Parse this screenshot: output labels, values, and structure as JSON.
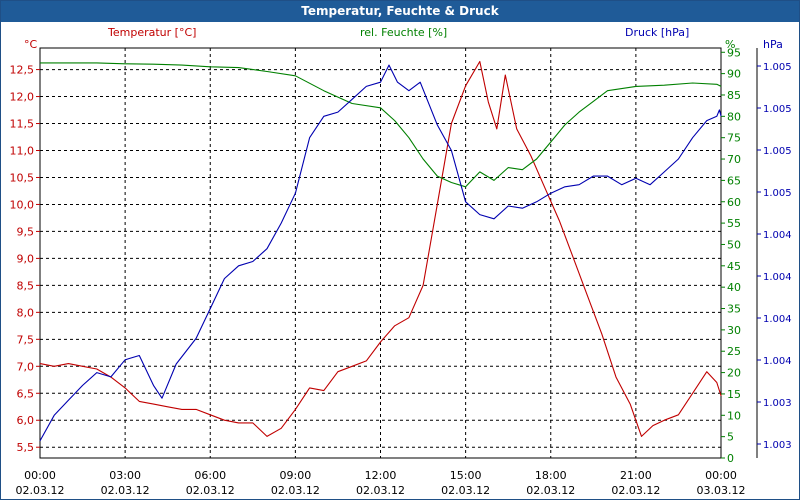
{
  "window": {
    "title": "Temperatur, Feuchte & Druck"
  },
  "legend": {
    "temperature": "Temperatur [°C]",
    "humidity": "rel. Feuchte [%]",
    "pressure": "Druck [hPa]"
  },
  "axes": {
    "left_unit": "°C",
    "right1_unit": "%",
    "right2_unit": "hPa",
    "left_ticks": [
      "5,5",
      "6,0",
      "6,5",
      "7,0",
      "7,5",
      "8,0",
      "8,5",
      "9,0",
      "9,5",
      "10,0",
      "10,5",
      "11,0",
      "11,5",
      "12,0",
      "12,5"
    ],
    "right1_ticks": [
      "0",
      "5",
      "10",
      "15",
      "20",
      "25",
      "30",
      "35",
      "40",
      "45",
      "50",
      "55",
      "60",
      "65",
      "70",
      "75",
      "80",
      "85",
      "90",
      "95"
    ],
    "right2_ticks": [
      "1.003",
      "1.003",
      "1.004",
      "1.004",
      "1.004",
      "1.004",
      "1.005",
      "1.005",
      "1.005",
      "1.005"
    ],
    "x_ticks": [
      {
        "time": "00:00",
        "date": "02.03.12"
      },
      {
        "time": "03:00",
        "date": "02.03.12"
      },
      {
        "time": "06:00",
        "date": "02.03.12"
      },
      {
        "time": "09:00",
        "date": "02.03.12"
      },
      {
        "time": "12:00",
        "date": "02.03.12"
      },
      {
        "time": "15:00",
        "date": "02.03.12"
      },
      {
        "time": "18:00",
        "date": "02.03.12"
      },
      {
        "time": "21:00",
        "date": "02.03.12"
      },
      {
        "time": "00:00",
        "date": "03.03.12"
      }
    ]
  },
  "colors": {
    "temperature": "#c00000",
    "humidity": "#008000",
    "pressure": "#0000b0",
    "grid": "#000000",
    "title_bg": "#1f5b98"
  },
  "chart_data": {
    "type": "line",
    "x_unit": "hours since 02.03.12 00:00",
    "xlim": [
      0,
      24
    ],
    "grid": true,
    "series": [
      {
        "name": "Temperatur [°C]",
        "axis": "left",
        "ylim": [
          5.3,
          12.9
        ],
        "points": [
          [
            0,
            7.05
          ],
          [
            0.5,
            7.0
          ],
          [
            1,
            7.05
          ],
          [
            1.5,
            7.0
          ],
          [
            2,
            6.95
          ],
          [
            2.5,
            6.8
          ],
          [
            3,
            6.6
          ],
          [
            3.5,
            6.35
          ],
          [
            4,
            6.3
          ],
          [
            4.5,
            6.25
          ],
          [
            5,
            6.2
          ],
          [
            5.5,
            6.2
          ],
          [
            6,
            6.1
          ],
          [
            6.5,
            6.0
          ],
          [
            7,
            5.95
          ],
          [
            7.5,
            5.95
          ],
          [
            8,
            5.7
          ],
          [
            8.5,
            5.85
          ],
          [
            9,
            6.2
          ],
          [
            9.5,
            6.6
          ],
          [
            10,
            6.55
          ],
          [
            10.5,
            6.9
          ],
          [
            11,
            7.0
          ],
          [
            11.5,
            7.1
          ],
          [
            12,
            7.45
          ],
          [
            12.5,
            7.75
          ],
          [
            13,
            7.9
          ],
          [
            13.5,
            8.5
          ],
          [
            14,
            10.0
          ],
          [
            14.5,
            11.5
          ],
          [
            15,
            12.2
          ],
          [
            15.5,
            12.65
          ],
          [
            15.8,
            11.9
          ],
          [
            16.1,
            11.4
          ],
          [
            16.4,
            12.4
          ],
          [
            16.8,
            11.4
          ],
          [
            17.3,
            10.9
          ],
          [
            17.8,
            10.3
          ],
          [
            18.3,
            9.7
          ],
          [
            18.8,
            9.0
          ],
          [
            19.3,
            8.3
          ],
          [
            19.8,
            7.6
          ],
          [
            20.3,
            6.8
          ],
          [
            20.8,
            6.3
          ],
          [
            21.2,
            5.7
          ],
          [
            21.6,
            5.9
          ],
          [
            22,
            6.0
          ],
          [
            22.5,
            6.1
          ],
          [
            23,
            6.5
          ],
          [
            23.5,
            6.9
          ],
          [
            24,
            6.7
          ],
          [
            24.5,
            6.45
          ]
        ]
      },
      {
        "name": "rel. Feuchte [%]",
        "axis": "right1",
        "ylim": [
          0,
          96
        ],
        "points": [
          [
            0,
            92.5
          ],
          [
            1,
            92.5
          ],
          [
            2,
            92.5
          ],
          [
            3,
            92.3
          ],
          [
            4,
            92.2
          ],
          [
            5,
            92.0
          ],
          [
            6,
            91.6
          ],
          [
            7,
            91.4
          ],
          [
            8,
            90.5
          ],
          [
            9,
            89.5
          ],
          [
            10,
            86.0
          ],
          [
            11,
            83.0
          ],
          [
            12,
            82.0
          ],
          [
            12.5,
            79.0
          ],
          [
            13,
            75.0
          ],
          [
            13.5,
            70.0
          ],
          [
            14,
            66.0
          ],
          [
            14.5,
            64.5
          ],
          [
            15,
            63.5
          ],
          [
            15.5,
            67.0
          ],
          [
            16,
            65.0
          ],
          [
            16.5,
            68.0
          ],
          [
            17,
            67.5
          ],
          [
            17.5,
            70.0
          ],
          [
            18,
            74.0
          ],
          [
            18.5,
            78.0
          ],
          [
            19,
            81.0
          ],
          [
            19.5,
            83.5
          ],
          [
            20,
            86.0
          ],
          [
            20.5,
            86.5
          ],
          [
            21,
            87.0
          ],
          [
            22,
            87.3
          ],
          [
            23,
            87.8
          ],
          [
            24,
            87.5
          ],
          [
            24.5,
            87.0
          ]
        ]
      },
      {
        "name": "Druck [hPa]",
        "axis": "right2",
        "ylim": [
          0,
          96
        ],
        "points": [
          [
            0,
            4.0
          ],
          [
            0.5,
            10.0
          ],
          [
            1,
            13.5
          ],
          [
            1.5,
            17.0
          ],
          [
            2,
            20.0
          ],
          [
            2.5,
            19.0
          ],
          [
            3,
            23.0
          ],
          [
            3.5,
            24.0
          ],
          [
            4,
            17.0
          ],
          [
            4.3,
            14.0
          ],
          [
            4.8,
            22.0
          ],
          [
            5.5,
            28.0
          ],
          [
            6,
            35.0
          ],
          [
            6.5,
            42.0
          ],
          [
            7,
            45.0
          ],
          [
            7.5,
            46.0
          ],
          [
            8,
            49.0
          ],
          [
            8.5,
            55.0
          ],
          [
            9,
            62.0
          ],
          [
            9.5,
            75.0
          ],
          [
            10,
            80.0
          ],
          [
            10.5,
            81.0
          ],
          [
            11,
            84.0
          ],
          [
            11.5,
            87.0
          ],
          [
            12,
            88.0
          ],
          [
            12.3,
            92.0
          ],
          [
            12.6,
            88.0
          ],
          [
            13,
            86.0
          ],
          [
            13.4,
            88.0
          ],
          [
            14,
            78.0
          ],
          [
            14.5,
            72.0
          ],
          [
            15,
            60.0
          ],
          [
            15.5,
            57.0
          ],
          [
            16,
            56.0
          ],
          [
            16.5,
            59.0
          ],
          [
            17,
            58.5
          ],
          [
            17.5,
            60.0
          ],
          [
            18,
            62.0
          ],
          [
            18.5,
            63.5
          ],
          [
            19,
            64.0
          ],
          [
            19.5,
            66.0
          ],
          [
            20,
            66.0
          ],
          [
            20.5,
            64.0
          ],
          [
            21,
            65.5
          ],
          [
            21.5,
            64.0
          ],
          [
            22,
            67.0
          ],
          [
            22.5,
            70.0
          ],
          [
            23,
            75.0
          ],
          [
            23.5,
            79.0
          ],
          [
            24,
            80.0
          ],
          [
            24.3,
            81.5
          ],
          [
            24.5,
            80.0
          ]
        ]
      }
    ]
  }
}
